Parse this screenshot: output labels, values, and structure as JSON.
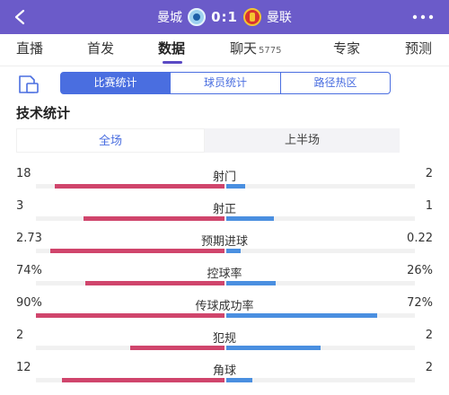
{
  "header": {
    "home_team": "曼城",
    "score": "0:1",
    "away_team": "曼联"
  },
  "nav": {
    "tabs": [
      {
        "label": "直播"
      },
      {
        "label": "首发"
      },
      {
        "label": "数据"
      },
      {
        "label": "聊天",
        "count": "5775"
      },
      {
        "label": "专家"
      },
      {
        "label": "预测"
      }
    ],
    "active": "数据"
  },
  "subtabs": {
    "items": [
      "比赛统计",
      "球员统计",
      "路径热区"
    ],
    "active": "比赛统计"
  },
  "section_title": "技术统计",
  "period_tabs": {
    "items": [
      "全场",
      "上半场"
    ],
    "active": "全场"
  },
  "colors": {
    "header_bg": "#6b5bc9",
    "accent": "#4a6ee0",
    "home_bar": "#d0456c",
    "away_bar": "#4a8fe0"
  },
  "stats": [
    {
      "name": "射门",
      "home": "18",
      "away": "2",
      "home_share": 0.9,
      "away_share": 0.1
    },
    {
      "name": "射正",
      "home": "3",
      "away": "1",
      "home_share": 0.75,
      "away_share": 0.25
    },
    {
      "name": "预期进球",
      "home": "2.73",
      "away": "0.22",
      "home_share": 0.925,
      "away_share": 0.075
    },
    {
      "name": "控球率",
      "home": "74%",
      "away": "26%",
      "home_share": 0.74,
      "away_share": 0.26
    },
    {
      "name": "传球成功率",
      "home": "90%",
      "away": "72%",
      "home_share": 1.0,
      "away_share": 0.8
    },
    {
      "name": "犯规",
      "home": "2",
      "away": "2",
      "home_share": 0.5,
      "away_share": 0.5
    },
    {
      "name": "角球",
      "home": "12",
      "away": "2",
      "home_share": 0.86,
      "away_share": 0.14
    }
  ]
}
